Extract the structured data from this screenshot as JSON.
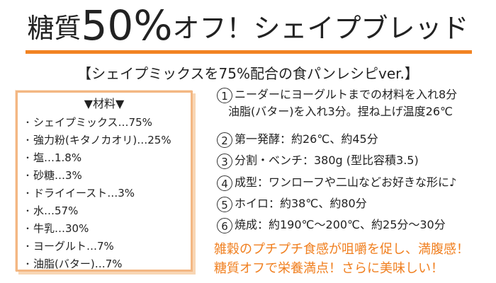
{
  "header": {
    "title_prefix": "糖質",
    "title_number": "50%",
    "title_suffix": "オフ！シェイプブレッド",
    "accent_color": "#f28322"
  },
  "subtitle": "【シェイプミックスを75%配合の食パンレシピver.】",
  "ingredients": {
    "title": "▼材料▼",
    "items": [
      "シェイプミックス…75%",
      "強力粉(キタノカオリ)…25%",
      "塩…1.8%",
      "砂糖…3%",
      "ドライイースト…3%",
      "水…57%",
      "牛乳…30%",
      "ヨーグルト…7%",
      "油脂(バター)…7%"
    ]
  },
  "steps": [
    {
      "num": "1",
      "line1": "ニーダーにヨーグルトまでの材料を入れ8分",
      "line2": "油脂(バター)を入れ3分。捏ね上げ温度26℃"
    },
    {
      "num": "2",
      "line1": "第一発酵：約26℃、約45分"
    },
    {
      "num": "3",
      "line1": "分割・ベンチ：380g (型比容積3.5)"
    },
    {
      "num": "4",
      "line1": "成型：ワンローフや二山などお好きな形に♪"
    },
    {
      "num": "5",
      "line1": "ホイロ：約38℃、約80分"
    },
    {
      "num": "6",
      "line1": "焼成：約190℃～200℃、約25分～30分"
    }
  ],
  "notes": [
    "雑穀のプチプチ食感が咀嚼を促し、満腹感！",
    "糖質オフで栄養満点！さらに美味しい！"
  ],
  "colors": {
    "note": "#f07f1f",
    "box_border": "#f3b783"
  }
}
